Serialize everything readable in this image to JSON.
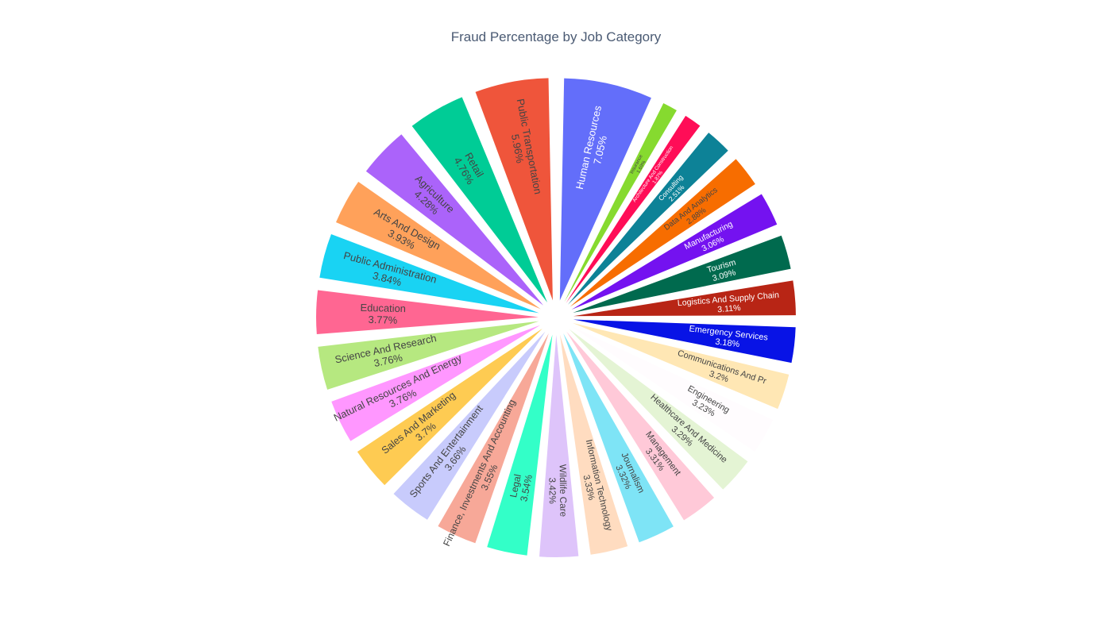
{
  "chart_data": {
    "type": "pie",
    "title": "Fraud Percentage by Job Category",
    "slices": [
      {
        "label": "Human Resources",
        "value": 7.05,
        "text": "7.05%",
        "color": "#636efa"
      },
      {
        "label": "Insurance",
        "value": 1.69,
        "text": "1.69%",
        "color": "#86da2f"
      },
      {
        "label": "Architecture And Construction",
        "value": 1.87,
        "text": "1.87%",
        "color": "#ff0d57"
      },
      {
        "label": "Consulting",
        "value": 2.51,
        "text": "2.51%",
        "color": "#0d8297"
      },
      {
        "label": "Data And Analytics",
        "value": 2.88,
        "text": "2.88%",
        "color": "#f76d00"
      },
      {
        "label": "Manufacturing",
        "value": 3.06,
        "text": "3.06%",
        "color": "#7412f0"
      },
      {
        "label": "Tourism",
        "value": 3.09,
        "text": "3.09%",
        "color": "#006a4e"
      },
      {
        "label": "Logistics And Supply Chain",
        "value": 3.11,
        "text": "3.11%",
        "color": "#b82515"
      },
      {
        "label": "Emergency Services",
        "value": 3.18,
        "text": "3.18%",
        "color": "#0813e6"
      },
      {
        "label": "Communications And Pr",
        "value": 3.2,
        "text": "3.2%",
        "color": "#ffe7b4"
      },
      {
        "label": "Engineering",
        "value": 3.23,
        "text": "3.23%",
        "color": "#fffcfe"
      },
      {
        "label": "Healthcare And Medicine",
        "value": 3.29,
        "text": "3.29%",
        "color": "#e4f4d4"
      },
      {
        "label": "Management",
        "value": 3.31,
        "text": "3.31%",
        "color": "#ffc9d8"
      },
      {
        "label": "Journalism",
        "value": 3.32,
        "text": "3.32%",
        "color": "#7ee4f6"
      },
      {
        "label": "Information Technology",
        "value": 3.33,
        "text": "3.33%",
        "color": "#ffdcc0"
      },
      {
        "label": "Wildlife Care",
        "value": 3.42,
        "text": "3.42%",
        "color": "#dec4fa"
      },
      {
        "label": "Legal",
        "value": 3.54,
        "text": "3.54%",
        "color": "#33ffc8"
      },
      {
        "label": "Finance, Investments And Accounting",
        "value": 3.55,
        "text": "3.55%",
        "color": "#f7a898"
      },
      {
        "label": "Sports And Entertainment",
        "value": 3.66,
        "text": "3.66%",
        "color": "#c8cbfc"
      },
      {
        "label": "Sales And Marketing",
        "value": 3.7,
        "text": "3.7%",
        "color": "#fecb52"
      },
      {
        "label": "Natural Resources And Energy",
        "value": 3.76,
        "text": "3.76%",
        "color": "#ff97ff"
      },
      {
        "label": "Science And Research",
        "value": 3.76,
        "text": "3.76%",
        "color": "#b6e880"
      },
      {
        "label": "Education",
        "value": 3.77,
        "text": "3.77%",
        "color": "#ff6692"
      },
      {
        "label": "Public Administration",
        "value": 3.84,
        "text": "3.84%",
        "color": "#19d3f3"
      },
      {
        "label": "Arts And Design",
        "value": 3.93,
        "text": "3.93%",
        "color": "#ffa15a"
      },
      {
        "label": "Agriculture",
        "value": 4.28,
        "text": "4.28%",
        "color": "#ab63fa"
      },
      {
        "label": "Retail",
        "value": 4.76,
        "text": "4.76%",
        "color": "#00cc96"
      },
      {
        "label": "Public Transportation",
        "value": 5.96,
        "text": "5.96%",
        "color": "#ef553b"
      }
    ]
  }
}
